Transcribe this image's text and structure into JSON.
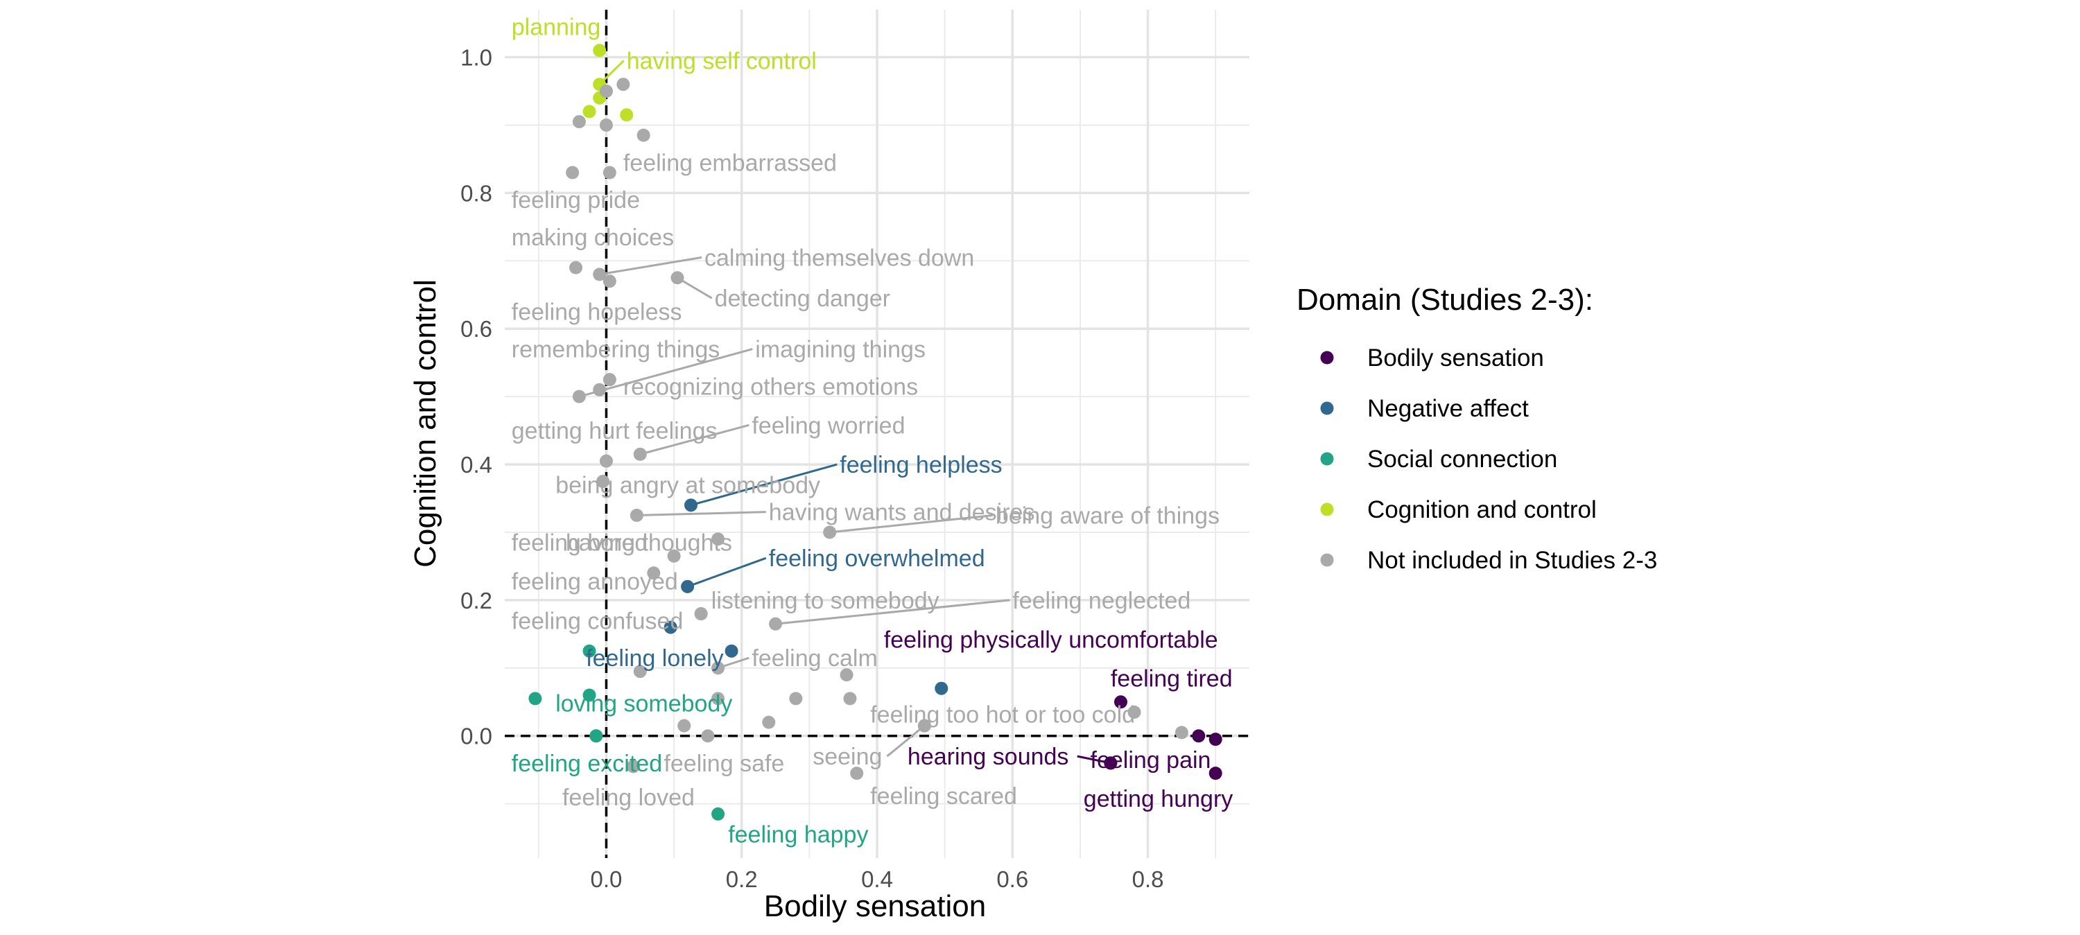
{
  "chart_data": {
    "type": "scatter",
    "xlabel": "Bodily sensation",
    "ylabel": "Cognition and control",
    "xlim": [
      -0.15,
      0.95
    ],
    "ylim": [
      -0.18,
      1.07
    ],
    "x_ticks": [
      "0.0",
      "0.2",
      "0.4",
      "0.6",
      "0.8"
    ],
    "y_ticks": [
      "0.0",
      "0.2",
      "0.4",
      "0.6",
      "0.8",
      "1.0"
    ],
    "x_tick_values": [
      0.0,
      0.2,
      0.4,
      0.6,
      0.8
    ],
    "y_tick_values": [
      0.0,
      0.2,
      0.4,
      0.6,
      0.8,
      1.0
    ],
    "reference_lines": {
      "x": 0,
      "y": 0,
      "style": "dashed"
    },
    "grid": true,
    "legend": {
      "title": "Domain (Studies 2-3):",
      "placement": "right",
      "entries": [
        {
          "key": "bodily",
          "label": "Bodily sensation",
          "color": "#440154"
        },
        {
          "key": "negative",
          "label": "Negative affect",
          "color": "#31688e"
        },
        {
          "key": "social",
          "label": "Social connection",
          "color": "#21a585"
        },
        {
          "key": "cognition",
          "label": "Cognition and control",
          "color": "#bddf26"
        },
        {
          "key": "other",
          "label": "Not included in Studies 2-3",
          "color": "#a9a9a9"
        }
      ]
    },
    "points": [
      {
        "label": "planning",
        "group": "cognition",
        "x": -0.01,
        "y": 1.01,
        "lx": -0.14,
        "ly": 1.045
      },
      {
        "label": "having self control",
        "group": "cognition",
        "x": -0.01,
        "y": 0.96,
        "lx": 0.03,
        "ly": 0.995
      },
      {
        "label": "",
        "group": "cognition",
        "x": -0.01,
        "y": 0.94
      },
      {
        "label": "",
        "group": "cognition",
        "x": -0.025,
        "y": 0.92
      },
      {
        "label": "",
        "group": "cognition",
        "x": 0.03,
        "y": 0.915
      },
      {
        "label": "",
        "group": "other",
        "x": 0.025,
        "y": 0.96
      },
      {
        "label": "",
        "group": "other",
        "x": 0.0,
        "y": 0.95
      },
      {
        "label": "",
        "group": "other",
        "x": -0.04,
        "y": 0.905
      },
      {
        "label": "",
        "group": "other",
        "x": 0.0,
        "y": 0.9
      },
      {
        "label": "",
        "group": "other",
        "x": 0.055,
        "y": 0.885
      },
      {
        "label": "feeling embarrassed",
        "group": "other",
        "x": 0.005,
        "y": 0.83,
        "lx": 0.025,
        "ly": 0.845
      },
      {
        "label": "feeling pride",
        "group": "other",
        "x": -0.05,
        "y": 0.83,
        "lx": -0.14,
        "ly": 0.79
      },
      {
        "label": "making choices",
        "group": "other",
        "x": -0.045,
        "y": 0.69,
        "lx": -0.14,
        "ly": 0.735
      },
      {
        "label": "calming themselves down",
        "group": "other",
        "x": -0.01,
        "y": 0.68,
        "lx": 0.145,
        "ly": 0.705
      },
      {
        "label": "detecting danger",
        "group": "other",
        "x": 0.105,
        "y": 0.675,
        "lx": 0.16,
        "ly": 0.645
      },
      {
        "label": "feeling hopeless",
        "group": "other",
        "x": 0.005,
        "y": 0.67,
        "lx": -0.14,
        "ly": 0.625
      },
      {
        "label": "remembering things",
        "group": "other",
        "x": -0.01,
        "y": 0.51,
        "lx": -0.14,
        "ly": 0.57
      },
      {
        "label": "imagining things",
        "group": "other",
        "x": -0.04,
        "y": 0.5,
        "lx": 0.22,
        "ly": 0.57
      },
      {
        "label": "recognizing others emotions",
        "group": "other",
        "x": 0.005,
        "y": 0.525,
        "lx": 0.025,
        "ly": 0.515
      },
      {
        "label": "getting hurt feelings",
        "group": "other",
        "x": 0.0,
        "y": 0.405,
        "lx": -0.14,
        "ly": 0.45
      },
      {
        "label": "feeling worried",
        "group": "other",
        "x": 0.05,
        "y": 0.415,
        "lx": 0.215,
        "ly": 0.458
      },
      {
        "label": "being angry at somebody",
        "group": "other",
        "x": -0.005,
        "y": 0.375,
        "lx": -0.075,
        "ly": 0.37
      },
      {
        "label": "feeling helpless",
        "group": "negative",
        "x": 0.125,
        "y": 0.34,
        "lx": 0.345,
        "ly": 0.4
      },
      {
        "label": "having wants and desires",
        "group": "other",
        "x": 0.045,
        "y": 0.325,
        "lx": 0.24,
        "ly": 0.33
      },
      {
        "label": "being aware of things",
        "group": "other",
        "x": 0.33,
        "y": 0.3,
        "lx": 0.575,
        "ly": 0.325
      },
      {
        "label": "feeling bored",
        "group": "other",
        "x": 0.1,
        "y": 0.265,
        "lx": -0.14,
        "ly": 0.285
      },
      {
        "label": "having thoughts",
        "group": "other",
        "x": 0.165,
        "y": 0.29,
        "lx": -0.06,
        "ly": 0.285
      },
      {
        "label": "feeling overwhelmed",
        "group": "negative",
        "x": 0.12,
        "y": 0.22,
        "lx": 0.24,
        "ly": 0.262
      },
      {
        "label": "feeling annoyed",
        "group": "other",
        "x": 0.07,
        "y": 0.24,
        "lx": -0.14,
        "ly": 0.228
      },
      {
        "label": "listening to somebody",
        "group": "other",
        "x": 0.14,
        "y": 0.18,
        "lx": 0.155,
        "ly": 0.2
      },
      {
        "label": "feeling neglected",
        "group": "other",
        "x": 0.25,
        "y": 0.165,
        "lx": 0.6,
        "ly": 0.2
      },
      {
        "label": "feeling confused",
        "group": "other",
        "x": 0.14,
        "y": 0.18,
        "lx": -0.14,
        "ly": 0.17
      },
      {
        "label": "",
        "group": "negative",
        "x": 0.095,
        "y": 0.16
      },
      {
        "label": "feeling physically uncomfortable",
        "group": "bodily",
        "x": 0.76,
        "y": 0.05,
        "lx": 0.41,
        "ly": 0.142
      },
      {
        "label": "feeling lonely",
        "group": "negative",
        "x": 0.185,
        "y": 0.125,
        "lx": -0.03,
        "ly": 0.115
      },
      {
        "label": "",
        "group": "social",
        "x": -0.025,
        "y": 0.125
      },
      {
        "label": "feeling calm",
        "group": "other",
        "x": 0.165,
        "y": 0.1,
        "lx": 0.215,
        "ly": 0.115
      },
      {
        "label": "feeling tired",
        "group": "bodily",
        "x": 0.875,
        "y": 0.0,
        "lx": 0.745,
        "ly": 0.085
      },
      {
        "label": "",
        "group": "other",
        "x": 0.05,
        "y": 0.095
      },
      {
        "label": "",
        "group": "other",
        "x": 0.355,
        "y": 0.09
      },
      {
        "label": "",
        "group": "negative",
        "x": 0.495,
        "y": 0.07
      },
      {
        "label": "loving somebody",
        "group": "social",
        "x": -0.105,
        "y": 0.055,
        "lx": -0.075,
        "ly": 0.048
      },
      {
        "label": "",
        "group": "social",
        "x": -0.025,
        "y": 0.06
      },
      {
        "label": "",
        "group": "other",
        "x": 0.165,
        "y": 0.055
      },
      {
        "label": "",
        "group": "other",
        "x": 0.28,
        "y": 0.055
      },
      {
        "label": "",
        "group": "other",
        "x": 0.36,
        "y": 0.055
      },
      {
        "label": "feeling too hot or too cold",
        "group": "other",
        "x": 0.78,
        "y": 0.035,
        "lx": 0.39,
        "ly": 0.032
      },
      {
        "label": "",
        "group": "other",
        "x": 0.115,
        "y": 0.015
      },
      {
        "label": "",
        "group": "other",
        "x": 0.24,
        "y": 0.02
      },
      {
        "label": "",
        "group": "other",
        "x": 0.47,
        "y": 0.015
      },
      {
        "label": "",
        "group": "other",
        "x": 0.85,
        "y": 0.005
      },
      {
        "label": "",
        "group": "bodily",
        "x": 0.9,
        "y": -0.005
      },
      {
        "label": "",
        "group": "social",
        "x": -0.015,
        "y": 0.0
      },
      {
        "label": "",
        "group": "other",
        "x": 0.15,
        "y": 0.0
      },
      {
        "label": "feeling excited",
        "group": "social",
        "x": -0.015,
        "y": 0.0,
        "lx": -0.14,
        "ly": -0.04
      },
      {
        "label": "feeling safe",
        "group": "other",
        "x": 0.04,
        "y": -0.045,
        "lx": 0.085,
        "ly": -0.04
      },
      {
        "label": "seeing",
        "group": "other",
        "x": 0.47,
        "y": 0.015,
        "lx": 0.305,
        "ly": -0.03
      },
      {
        "label": "hearing sounds",
        "group": "bodily",
        "x": 0.745,
        "y": -0.04,
        "lx": 0.445,
        "ly": -0.03
      },
      {
        "label": "feeling pain",
        "group": "bodily",
        "x": 0.745,
        "y": -0.04,
        "lx": 0.715,
        "ly": -0.035
      },
      {
        "label": "getting hungry",
        "group": "bodily",
        "x": 0.9,
        "y": -0.055,
        "lx": 0.705,
        "ly": -0.092
      },
      {
        "label": "feeling scared",
        "group": "other",
        "x": 0.37,
        "y": -0.055,
        "lx": 0.39,
        "ly": -0.088
      },
      {
        "label": "feeling loved",
        "group": "other",
        "x": 0.04,
        "y": -0.045,
        "lx": -0.065,
        "ly": -0.09
      },
      {
        "label": "feeling happy",
        "group": "social",
        "x": 0.165,
        "y": -0.115,
        "lx": 0.18,
        "ly": -0.145
      }
    ]
  }
}
